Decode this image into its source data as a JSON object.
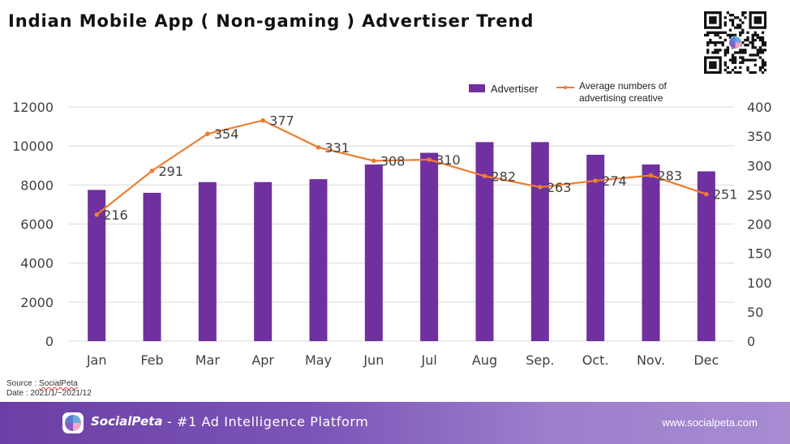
{
  "title": "Indian Mobile App ( Non-gaming ) Advertiser Trend",
  "chart_data": {
    "type": "bar+line",
    "categories": [
      "Jan",
      "Feb",
      "Mar",
      "Apr",
      "May",
      "Jun",
      "Jul",
      "Aug",
      "Sep.",
      "Oct.",
      "Nov.",
      "Dec"
    ],
    "series": [
      {
        "name": "Advertiser",
        "kind": "bar",
        "axis": "left",
        "color": "#7030a0",
        "values": [
          7750,
          7600,
          8150,
          8150,
          8300,
          9050,
          9650,
          10200,
          10200,
          9550,
          9050,
          8700
        ]
      },
      {
        "name": "Average numbers of advertising creative",
        "legend_lines": [
          "Average numbers of",
          "advertising creative"
        ],
        "kind": "line",
        "axis": "right",
        "color": "#ed7d31",
        "values": [
          216,
          291,
          354,
          377,
          331,
          308,
          310,
          282,
          263,
          274,
          283,
          251
        ],
        "labels": [
          "216",
          "291",
          "354",
          "377",
          "331",
          "308",
          "310",
          "282",
          "263",
          "274",
          "283",
          "251"
        ]
      }
    ],
    "y_left": {
      "min": 0,
      "max": 12000,
      "ticks": [
        "0",
        "2000",
        "4000",
        "6000",
        "8000",
        "10000",
        "12000"
      ]
    },
    "y_right": {
      "min": 0,
      "max": 400,
      "ticks": [
        "0",
        "50",
        "100",
        "150",
        "200",
        "250",
        "300",
        "350",
        "400"
      ]
    },
    "grid": true,
    "legend": "top-right"
  },
  "source": {
    "line1_prefix": "Source : ",
    "line1_brand": "SocialPeta",
    "line2": "Date : 2021/1/~2021/12"
  },
  "footer": {
    "brand": "SocialPeta",
    "tagline": "- #1 Ad Intelligence Platform",
    "url": "www.socialpeta.com"
  },
  "colors": {
    "bar": "#7030a0",
    "line": "#ed7d31",
    "grid": "#d9d9d9"
  }
}
